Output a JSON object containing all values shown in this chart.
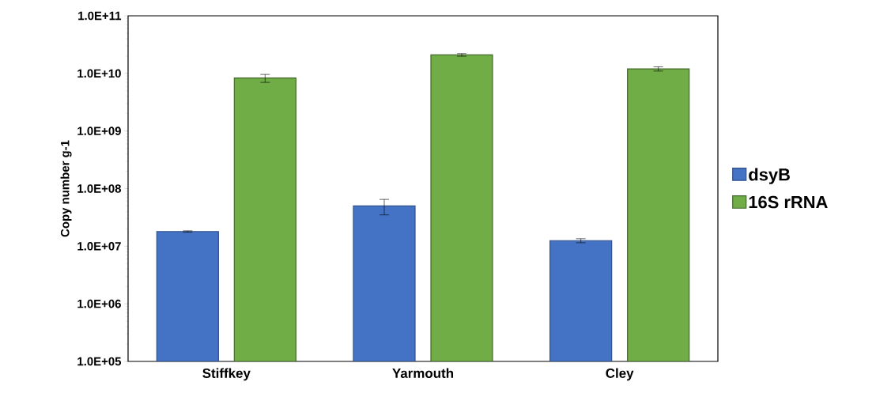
{
  "chart_data": {
    "type": "bar",
    "ylabel": "Copy number g-1",
    "categories": [
      "Stiffkey",
      "Yarmouth",
      "Cley"
    ],
    "series": [
      {
        "name": "dsyB",
        "color": "#4472c4",
        "values": [
          18000000,
          50000000,
          12500000
        ],
        "errors": [
          500000,
          15000000,
          1000000
        ]
      },
      {
        "name": "16S rRNA",
        "color": "#70ad47",
        "values": [
          8300000000,
          21000000000,
          12000000000
        ],
        "errors": [
          1300000000,
          1100000000,
          1000000000
        ]
      }
    ],
    "log": "y",
    "ylim": [
      100000,
      100000000000
    ],
    "yticks": [
      {
        "value": 100000,
        "label": "1.0E+05"
      },
      {
        "value": 1000000,
        "label": "1.0E+06"
      },
      {
        "value": 10000000,
        "label": "1.0E+07"
      },
      {
        "value": 100000000,
        "label": "1.0E+08"
      },
      {
        "value": 1000000000,
        "label": "1.0E+09"
      },
      {
        "value": 10000000000,
        "label": "1.0E+10"
      },
      {
        "value": 100000000000,
        "label": "1.0E+11"
      }
    ],
    "grid": false,
    "legend": "right"
  }
}
